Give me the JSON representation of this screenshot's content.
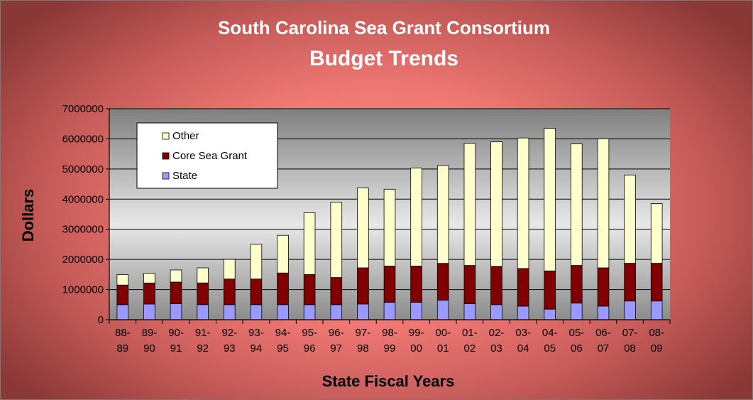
{
  "chart_data": {
    "type": "bar",
    "stacked": true,
    "title": "South Carolina Sea Grant Consortium",
    "subtitle": "Budget Trends",
    "xlabel": "State Fiscal Years",
    "ylabel": "Dollars",
    "ylim": [
      0,
      7000000
    ],
    "yticks": [
      "0",
      "1000000",
      "2000000",
      "3000000",
      "4000000",
      "5000000",
      "6000000",
      "7000000"
    ],
    "grid": true,
    "legend_position": "top-left",
    "categories": [
      [
        "88-",
        "89"
      ],
      [
        "89-",
        "90"
      ],
      [
        "90-",
        "91"
      ],
      [
        "91-",
        "92"
      ],
      [
        "92-",
        "93"
      ],
      [
        "93-",
        "94"
      ],
      [
        "94-",
        "95"
      ],
      [
        "95-",
        "96"
      ],
      [
        "96-",
        "97"
      ],
      [
        "97-",
        "98"
      ],
      [
        "98-",
        "99"
      ],
      [
        "99-",
        "00"
      ],
      [
        "00-",
        "01"
      ],
      [
        "01-",
        "02"
      ],
      [
        "02-",
        "03"
      ],
      [
        "03-",
        "04"
      ],
      [
        "04-",
        "05"
      ],
      [
        "05-",
        "06"
      ],
      [
        "06-",
        "07"
      ],
      [
        "07-",
        "08"
      ],
      [
        "08-",
        "09"
      ]
    ],
    "series": [
      {
        "name": "State",
        "color": "#9999ff",
        "values": [
          500000,
          520000,
          530000,
          500000,
          500000,
          500000,
          500000,
          500000,
          500000,
          520000,
          580000,
          580000,
          650000,
          530000,
          500000,
          450000,
          350000,
          550000,
          450000,
          620000,
          620000
        ]
      },
      {
        "name": "Core Sea Grant",
        "color": "#800000",
        "values": [
          650000,
          700000,
          720000,
          720000,
          850000,
          850000,
          1050000,
          1000000,
          900000,
          1200000,
          1200000,
          1200000,
          1220000,
          1270000,
          1270000,
          1250000,
          1270000,
          1250000,
          1270000,
          1250000,
          1250000
        ]
      },
      {
        "name": "Other",
        "color": "#ffffcc",
        "values": [
          350000,
          320000,
          400000,
          500000,
          650000,
          1150000,
          1250000,
          2050000,
          2500000,
          2650000,
          2550000,
          3250000,
          3250000,
          4050000,
          4130000,
          4330000,
          4730000,
          4030000,
          4280000,
          2930000,
          1980000
        ]
      }
    ],
    "legend_order": [
      "Other",
      "Core Sea Grant",
      "State"
    ]
  }
}
